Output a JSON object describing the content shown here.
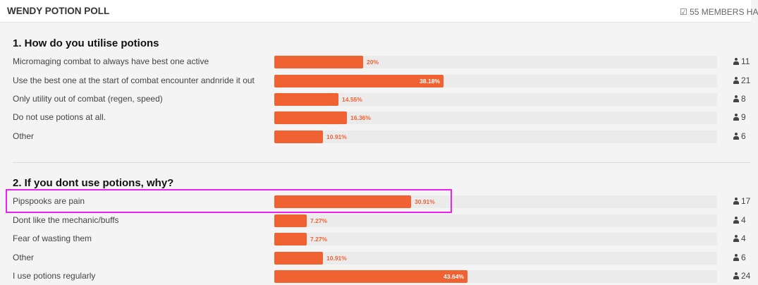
{
  "header": {
    "title": "WENDY POTION POLL",
    "members_text": "55 MEMBERS HA"
  },
  "colors": {
    "accent": "#f06232",
    "highlight": "#ee22ee"
  },
  "questions": [
    {
      "title": "1. How do you utilise potions",
      "options": [
        {
          "label": "Micromaging combat to always have best one active",
          "percent": 20,
          "percent_text": "20%",
          "count": "11"
        },
        {
          "label": "Use the best one at the start of combat encounter andnride it out",
          "percent": 38.18,
          "percent_text": "38.18%",
          "count": "21"
        },
        {
          "label": "Only utility out of combat (regen, speed)",
          "percent": 14.55,
          "percent_text": "14.55%",
          "count": "8"
        },
        {
          "label": "Do not use potions at all.",
          "percent": 16.36,
          "percent_text": "16.36%",
          "count": "9"
        },
        {
          "label": "Other",
          "percent": 10.91,
          "percent_text": "10.91%",
          "count": "6"
        }
      ]
    },
    {
      "title": "2. If you dont use potions, why?",
      "options": [
        {
          "label": "Pipspooks are pain",
          "percent": 30.91,
          "percent_text": "30.91%",
          "count": "17"
        },
        {
          "label": "Dont like the mechanic/buffs",
          "percent": 7.27,
          "percent_text": "7.27%",
          "count": "4"
        },
        {
          "label": "Fear of wasting them",
          "percent": 7.27,
          "percent_text": "7.27%",
          "count": "4"
        },
        {
          "label": "Other",
          "percent": 10.91,
          "percent_text": "10.91%",
          "count": "6"
        },
        {
          "label": "I use potions regularly",
          "percent": 43.64,
          "percent_text": "43.64%",
          "count": "24"
        }
      ]
    }
  ]
}
